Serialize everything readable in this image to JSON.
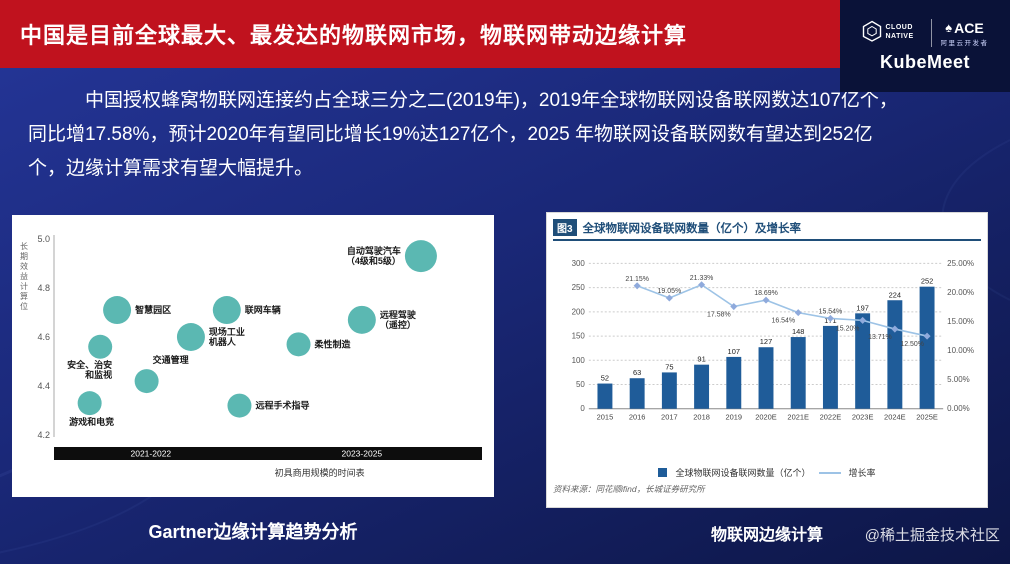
{
  "slide": {
    "title": "中国是目前全球最大、最发达的物联网市场，物联网带动边缘计算",
    "body_text": "中国授权蜂窝物联网连接约占全球三分之二(2019年)，2019年全球物联网设备联网数达107亿个，同比增17.58%，预计2020年有望同比增长19%达127亿个，2025 年物联网设备联网数有望达到252亿个，边缘计算需求有望大幅提升。",
    "left_caption": "Gartner边缘计算趋势分析",
    "right_caption": "物联网边缘计算",
    "watermark": "@稀土掘金技术社区"
  },
  "branding": {
    "cloud_native_label": "CLOUD NATIVE",
    "ace_label": "ACE",
    "ace_sub_label": "阿里云开发者",
    "kubemeet_label": "KubeMeet"
  },
  "colors": {
    "banner_red": "#C0121E",
    "bubble_teal": "#5BB8B2",
    "bar_blue": "#1F5C99",
    "line_blue": "#9DC3E6",
    "header_blue": "#1F4E79"
  },
  "chart_data": [
    {
      "type": "scatter",
      "name": "Gartner边缘计算趋势气泡图",
      "ylabel": "长期效益计算位",
      "ylim": [
        4.2,
        5.0
      ],
      "yticks": [
        4.2,
        4.4,
        4.6,
        4.8,
        5.0
      ],
      "xlabel": "初具商用规模的时间表",
      "x_periods": [
        "2021-2022",
        "2023-2025"
      ],
      "bubble_color": "#5BB8B2",
      "points": [
        {
          "label": "智慧园区",
          "x": 0.14,
          "y": 4.71,
          "r": 14,
          "label_side": "right"
        },
        {
          "label": "安全、治安\n和监视",
          "x": 0.1,
          "y": 4.56,
          "r": 12,
          "label_side": "below-left"
        },
        {
          "label": "游戏和电竞",
          "x": 0.075,
          "y": 4.33,
          "r": 12,
          "label_side": "below"
        },
        {
          "label": "交通管理",
          "x": 0.21,
          "y": 4.42,
          "r": 12,
          "label_side": "above-right"
        },
        {
          "label": "现场工业\n机器人",
          "x": 0.315,
          "y": 4.6,
          "r": 14,
          "label_side": "right"
        },
        {
          "label": "联网车辆",
          "x": 0.4,
          "y": 4.71,
          "r": 14,
          "label_side": "right"
        },
        {
          "label": "远程手术指导",
          "x": 0.43,
          "y": 4.32,
          "r": 12,
          "label_side": "right"
        },
        {
          "label": "柔性制造",
          "x": 0.57,
          "y": 4.57,
          "r": 12,
          "label_side": "right"
        },
        {
          "label": "远程驾驶\n（遥控）",
          "x": 0.72,
          "y": 4.67,
          "r": 14,
          "label_side": "right"
        },
        {
          "label": "自动驾驶汽车\n（4级和5级）",
          "x": 0.86,
          "y": 4.93,
          "r": 16,
          "label_side": "left"
        }
      ]
    },
    {
      "type": "bar+line",
      "fig_tag": "图3",
      "title": "全球物联网设备联网数量（亿个）及增长率",
      "categories": [
        "2015",
        "2016",
        "2017",
        "2018",
        "2019",
        "2020E",
        "2021E",
        "2022E",
        "2023E",
        "2024E",
        "2025E"
      ],
      "bar_series": {
        "name": "全球物联网设备联网数量（亿个）",
        "color": "#1F5C99",
        "values": [
          52,
          63,
          75,
          91,
          107,
          127,
          148,
          171,
          197,
          224,
          252
        ]
      },
      "line_series": {
        "name": "增长率",
        "color": "#9DC3E6",
        "values": [
          null,
          21.15,
          19.05,
          21.33,
          17.58,
          18.69,
          16.54,
          15.54,
          15.2,
          13.71,
          12.5
        ],
        "labels": [
          "",
          "21.15%",
          "19.05%",
          "21.33%",
          "17.58%",
          "18.69%",
          "16.54%",
          "15.54%",
          "15.20%",
          "13.71%",
          "12.50%"
        ],
        "label_pos": [
          "",
          "above",
          "above",
          "above",
          "below",
          "above",
          "below",
          "above",
          "below",
          "below",
          "below"
        ]
      },
      "ylim_left": [
        0,
        300
      ],
      "yticks_left": [
        0,
        50,
        100,
        150,
        200,
        250,
        300
      ],
      "ylim_right": [
        0,
        25
      ],
      "yticks_right": [
        "0.00%",
        "5.00%",
        "10.00%",
        "15.00%",
        "20.00%",
        "25.00%"
      ],
      "source": "资料来源：同花顺ifind，长城证券研究所"
    }
  ]
}
